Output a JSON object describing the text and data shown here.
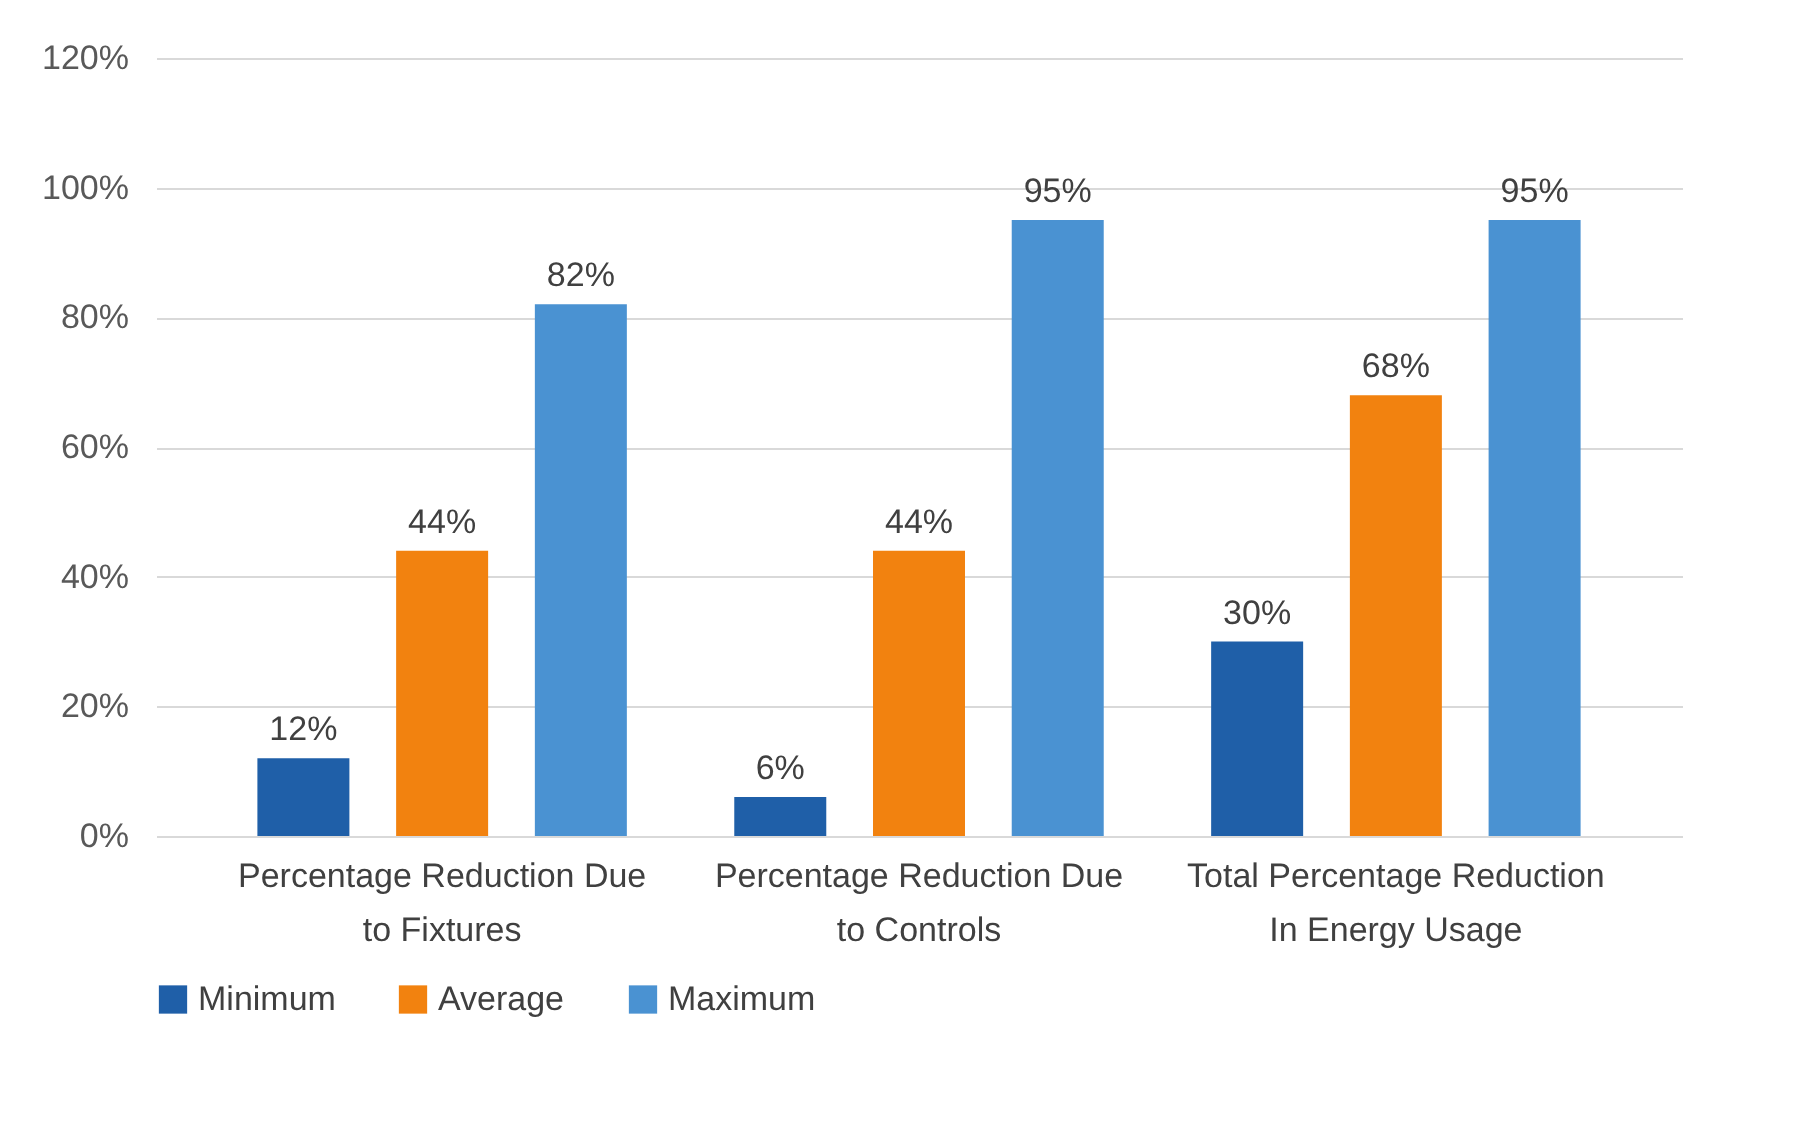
{
  "chart_data": {
    "type": "bar",
    "categories": [
      "Percentage Reduction Due\nto Fixtures",
      "Percentage Reduction Due\nto Controls",
      "Total Percentage Reduction\nIn Energy Usage"
    ],
    "series": [
      {
        "name": "Minimum",
        "color": "#1f5fa8",
        "values": [
          12,
          6,
          30
        ],
        "value_labels": [
          "12%",
          "6%",
          "30%"
        ]
      },
      {
        "name": "Average",
        "color": "#f2820f",
        "values": [
          44,
          44,
          68
        ],
        "value_labels": [
          "44%",
          "44%",
          "68%"
        ]
      },
      {
        "name": "Maximum",
        "color": "#4a92d2",
        "values": [
          82,
          95,
          95
        ],
        "value_labels": [
          "82%",
          "95%",
          "95%"
        ]
      }
    ],
    "ylim": [
      0,
      120
    ],
    "yticks": [
      {
        "value": 0,
        "label": "0%"
      },
      {
        "value": 20,
        "label": "20%"
      },
      {
        "value": 40,
        "label": "40%"
      },
      {
        "value": 60,
        "label": "60%"
      },
      {
        "value": 80,
        "label": "80%"
      },
      {
        "value": 100,
        "label": "100%"
      },
      {
        "value": 120,
        "label": "120%"
      }
    ],
    "grid": "y",
    "legend": "bottom"
  }
}
